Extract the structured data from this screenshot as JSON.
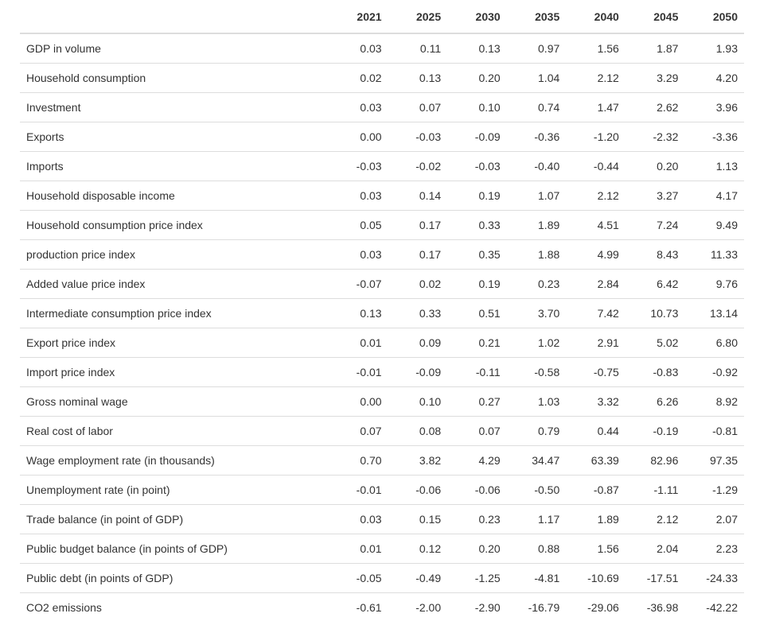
{
  "table": {
    "columns": [
      "",
      "2021",
      "2025",
      "2030",
      "2035",
      "2040",
      "2045",
      "2050"
    ],
    "rows": [
      {
        "label": "GDP in volume",
        "values": [
          "0.03",
          "0.11",
          "0.13",
          "0.97",
          "1.56",
          "1.87",
          "1.93"
        ]
      },
      {
        "label": "Household consumption",
        "values": [
          "0.02",
          "0.13",
          "0.20",
          "1.04",
          "2.12",
          "3.29",
          "4.20"
        ]
      },
      {
        "label": "Investment",
        "values": [
          "0.03",
          "0.07",
          "0.10",
          "0.74",
          "1.47",
          "2.62",
          "3.96"
        ]
      },
      {
        "label": "Exports",
        "values": [
          "0.00",
          "-0.03",
          "-0.09",
          "-0.36",
          "-1.20",
          "-2.32",
          "-3.36"
        ]
      },
      {
        "label": "Imports",
        "values": [
          "-0.03",
          "-0.02",
          "-0.03",
          "-0.40",
          "-0.44",
          "0.20",
          "1.13"
        ]
      },
      {
        "label": "Household disposable income",
        "values": [
          "0.03",
          "0.14",
          "0.19",
          "1.07",
          "2.12",
          "3.27",
          "4.17"
        ]
      },
      {
        "label": "Household consumption price index",
        "values": [
          "0.05",
          "0.17",
          "0.33",
          "1.89",
          "4.51",
          "7.24",
          "9.49"
        ]
      },
      {
        "label": "production price index",
        "values": [
          "0.03",
          "0.17",
          "0.35",
          "1.88",
          "4.99",
          "8.43",
          "11.33"
        ]
      },
      {
        "label": "Added value price index",
        "values": [
          "-0.07",
          "0.02",
          "0.19",
          "0.23",
          "2.84",
          "6.42",
          "9.76"
        ]
      },
      {
        "label": "Intermediate consumption price index",
        "values": [
          "0.13",
          "0.33",
          "0.51",
          "3.70",
          "7.42",
          "10.73",
          "13.14"
        ]
      },
      {
        "label": "Export price index",
        "values": [
          "0.01",
          "0.09",
          "0.21",
          "1.02",
          "2.91",
          "5.02",
          "6.80"
        ]
      },
      {
        "label": "Import price index",
        "values": [
          "-0.01",
          "-0.09",
          "-0.11",
          "-0.58",
          "-0.75",
          "-0.83",
          "-0.92"
        ]
      },
      {
        "label": "Gross nominal wage",
        "values": [
          "0.00",
          "0.10",
          "0.27",
          "1.03",
          "3.32",
          "6.26",
          "8.92"
        ]
      },
      {
        "label": "Real cost of labor",
        "values": [
          "0.07",
          "0.08",
          "0.07",
          "0.79",
          "0.44",
          "-0.19",
          "-0.81"
        ]
      },
      {
        "label": "Wage employment rate (in thousands)",
        "values": [
          "0.70",
          "3.82",
          "4.29",
          "34.47",
          "63.39",
          "82.96",
          "97.35"
        ]
      },
      {
        "label": "Unemployment rate (in point)",
        "values": [
          "-0.01",
          "-0.06",
          "-0.06",
          "-0.50",
          "-0.87",
          "-1.11",
          "-1.29"
        ]
      },
      {
        "label": "Trade balance (in point of GDP)",
        "values": [
          "0.03",
          "0.15",
          "0.23",
          "1.17",
          "1.89",
          "2.12",
          "2.07"
        ]
      },
      {
        "label": "Public budget balance (in points of GDP)",
        "values": [
          "0.01",
          "0.12",
          "0.20",
          "0.88",
          "1.56",
          "2.04",
          "2.23"
        ]
      },
      {
        "label": "Public debt (in points of GDP)",
        "values": [
          "-0.05",
          "-0.49",
          "-1.25",
          "-4.81",
          "-10.69",
          "-17.51",
          "-24.33"
        ]
      },
      {
        "label": "CO2 emissions",
        "values": [
          "-0.61",
          "-2.00",
          "-2.90",
          "-16.79",
          "-29.06",
          "-36.98",
          "-42.22"
        ]
      }
    ]
  }
}
